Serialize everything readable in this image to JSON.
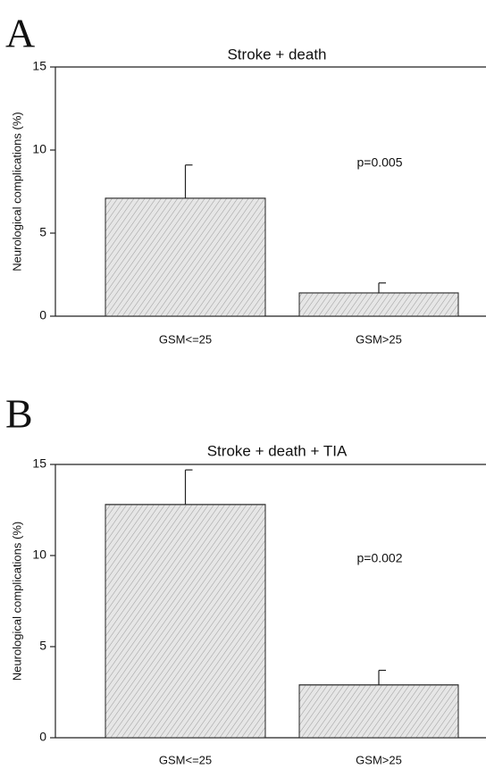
{
  "chart_data": [
    {
      "type": "bar",
      "panel": "A",
      "title": "Stroke + death",
      "ylabel": "Neurological complications (%)",
      "categories": [
        "GSM<=25",
        "GSM>25"
      ],
      "values": [
        7.1,
        1.4
      ],
      "errors": [
        2.0,
        0.6
      ],
      "annotation": "p=0.005",
      "ylim": [
        0,
        15
      ],
      "yticks": [
        0,
        5,
        10,
        15
      ],
      "color": "#e6e6e6"
    },
    {
      "type": "bar",
      "panel": "B",
      "title": "Stroke + death + TIA",
      "ylabel": "Neurological complications (%)",
      "categories": [
        "GSM<=25",
        "GSM>25"
      ],
      "values": [
        12.8,
        2.9
      ],
      "errors": [
        1.9,
        0.8
      ],
      "annotation": "p=0.002",
      "ylim": [
        0,
        15
      ],
      "yticks": [
        0,
        5,
        10,
        15
      ],
      "color": "#e6e6e6"
    }
  ]
}
